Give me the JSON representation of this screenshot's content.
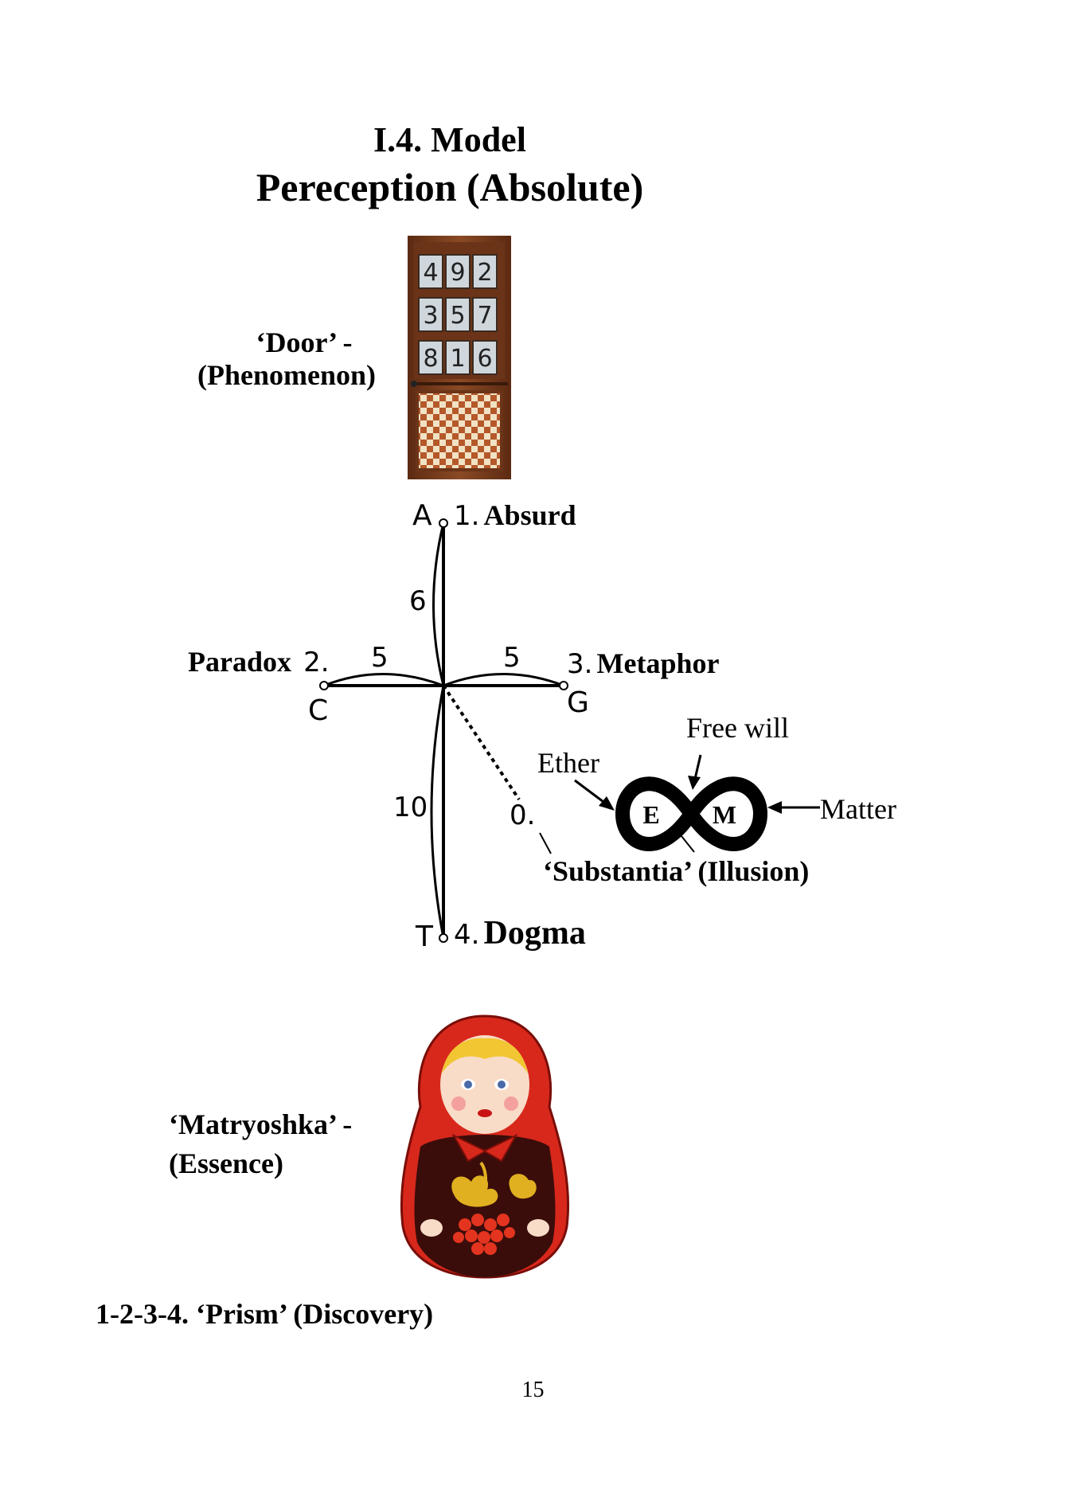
{
  "heading": {
    "section": "I.4.  Model",
    "title": "Pereception (Absolute)"
  },
  "door": {
    "label_line1": "‘Door’ -",
    "label_line2": "(Phenomenon)",
    "magic_square": [
      [
        "4",
        "9",
        "2"
      ],
      [
        "3",
        "5",
        "7"
      ],
      [
        "8",
        "1",
        "6"
      ]
    ]
  },
  "cross": {
    "points": {
      "top": {
        "letter": "A",
        "label_num": "1.",
        "label_text": "Absurd"
      },
      "left": {
        "letter": "C",
        "label_num": "2.",
        "label_text": "Paradox"
      },
      "right": {
        "letter": "G",
        "label_num": "3.",
        "label_text": "Metaphor"
      },
      "bottom": {
        "letter": "T",
        "label_num": "4.",
        "label_text": "Dogma"
      },
      "center": {
        "label_num": "0."
      }
    },
    "arc_labels": {
      "top": "6",
      "left": "5",
      "right": "5",
      "bottom": "10"
    }
  },
  "infinity": {
    "left_letter": "E",
    "right_letter": "M",
    "ether": "Ether",
    "free_will": "Free will",
    "matter": "Matter",
    "substantia": "‘Substantia’ (Illusion)"
  },
  "matryoshka": {
    "label_line1": "‘Matryoshka’ -",
    "label_line2": "(Essence)"
  },
  "prism": "1-2-3-4. ‘Prism’ (Discovery)",
  "page_number": "15",
  "colors": {
    "door_frame": "#7a3d1f",
    "doll_red": "#d8281c",
    "doll_dark": "#3a0d0a",
    "doll_gold": "#e0b020"
  }
}
